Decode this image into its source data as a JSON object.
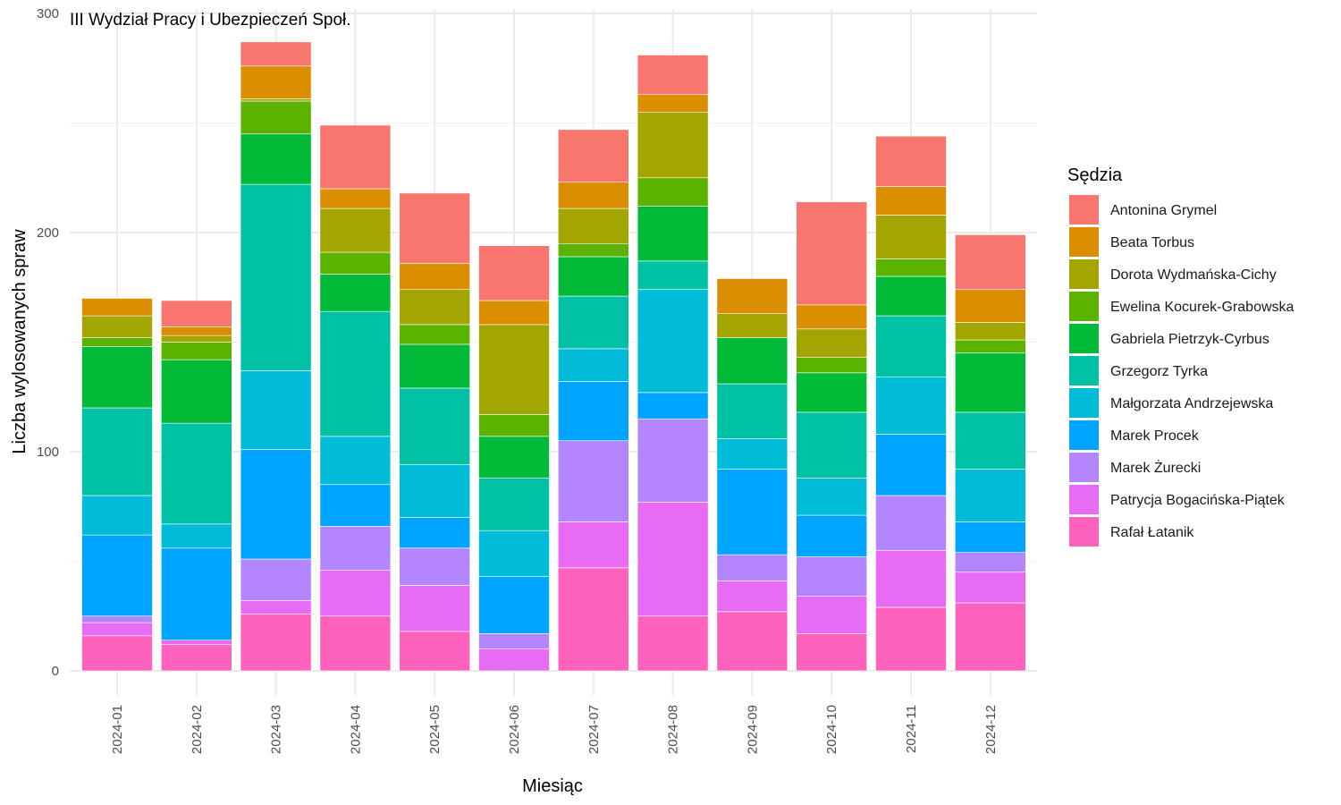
{
  "chart_data": {
    "type": "bar",
    "stacked": true,
    "title": "III Wydział Pracy i Ubezpieczeń Społ.",
    "xlabel": "Miesiąc",
    "ylabel": "Liczba wylosowanych spraw",
    "ylim": [
      0,
      300
    ],
    "yticks": [
      "0",
      "100",
      "200",
      "300"
    ],
    "grid": true,
    "legend_title": "Sędzia",
    "legend_position": "right",
    "categories": [
      "2024-01",
      "2024-02",
      "2024-03",
      "2024-04",
      "2024-05",
      "2024-06",
      "2024-07",
      "2024-08",
      "2024-09",
      "2024-10",
      "2024-11",
      "2024-12"
    ],
    "series": [
      {
        "name": "Rafał Łatanik",
        "color": "#FF62BC",
        "values": [
          16,
          12,
          26,
          25,
          18,
          0,
          47,
          25,
          27,
          17,
          29,
          31
        ]
      },
      {
        "name": "Patrycja Bogacińska-Piątek",
        "color": "#E76BF3",
        "values": [
          6,
          2,
          6,
          21,
          21,
          10,
          21,
          52,
          14,
          17,
          26,
          14
        ]
      },
      {
        "name": "Marek Żurecki",
        "color": "#B385FF",
        "values": [
          3,
          0,
          19,
          20,
          17,
          7,
          37,
          38,
          12,
          18,
          25,
          9
        ]
      },
      {
        "name": "Marek Procek",
        "color": "#00A5FF",
        "values": [
          37,
          42,
          50,
          19,
          14,
          26,
          27,
          12,
          39,
          19,
          28,
          14
        ]
      },
      {
        "name": "Małgorzata Andrzejewska",
        "color": "#00BCD8",
        "values": [
          18,
          11,
          36,
          22,
          24,
          21,
          15,
          47,
          14,
          17,
          26,
          24
        ]
      },
      {
        "name": "Grzegorz Tyrka",
        "color": "#00C1A3",
        "values": [
          40,
          46,
          85,
          57,
          35,
          24,
          24,
          13,
          25,
          30,
          28,
          26
        ]
      },
      {
        "name": "Gabriela Pietrzyk-Cyrbus",
        "color": "#00BA38",
        "values": [
          28,
          29,
          23,
          17,
          20,
          19,
          18,
          25,
          21,
          18,
          18,
          27
        ]
      },
      {
        "name": "Ewelina Kocurek-Grabowska",
        "color": "#5BB300",
        "values": [
          4,
          8,
          15,
          10,
          9,
          10,
          6,
          13,
          0,
          7,
          8,
          6
        ]
      },
      {
        "name": "Dorota Wydmańska-Cichy",
        "color": "#A3A500",
        "values": [
          10,
          3,
          1,
          20,
          16,
          41,
          16,
          30,
          11,
          13,
          20,
          8
        ]
      },
      {
        "name": "Beata Torbus",
        "color": "#DB8E00",
        "values": [
          8,
          4,
          15,
          9,
          12,
          11,
          12,
          8,
          16,
          11,
          13,
          15
        ]
      },
      {
        "name": "Antonina Grymel",
        "color": "#F8766D",
        "values": [
          0,
          12,
          11,
          29,
          32,
          25,
          24,
          18,
          0,
          47,
          23,
          25
        ]
      }
    ]
  }
}
